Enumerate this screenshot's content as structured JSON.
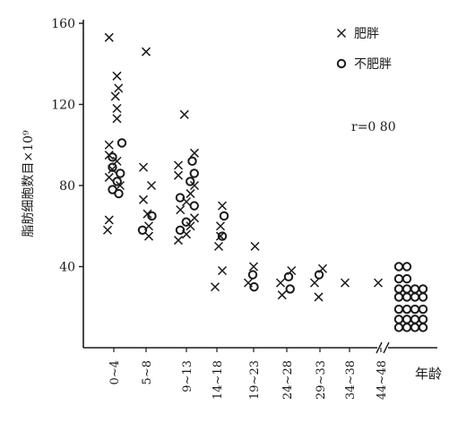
{
  "chart_data": {
    "type": "scatter",
    "title": "",
    "xlabel": "年龄",
    "ylabel": "脂肪细胞数目×10⁹",
    "categories": [
      "0~4",
      "5~8",
      "9~13",
      "14~18",
      "19~23",
      "24~28",
      "29~33",
      "34~38",
      "44~48"
    ],
    "yticks": [
      "40",
      "80",
      "120",
      "160"
    ],
    "ylim": [
      0,
      165
    ],
    "grid": false,
    "legend_position": "top-right",
    "axis_break": true,
    "annotation": "r=0 80",
    "series": [
      {
        "name": "肥胖",
        "marker": "x",
        "points": [
          {
            "cat": "0~4",
            "y": 153
          },
          {
            "cat": "0~4",
            "y": 134
          },
          {
            "cat": "0~4",
            "y": 128
          },
          {
            "cat": "0~4",
            "y": 124
          },
          {
            "cat": "0~4",
            "y": 118
          },
          {
            "cat": "0~4",
            "y": 113
          },
          {
            "cat": "0~4",
            "y": 100
          },
          {
            "cat": "0~4",
            "y": 95
          },
          {
            "cat": "0~4",
            "y": 92
          },
          {
            "cat": "0~4",
            "y": 88
          },
          {
            "cat": "0~4",
            "y": 84
          },
          {
            "cat": "0~4",
            "y": 80
          },
          {
            "cat": "0~4",
            "y": 63
          },
          {
            "cat": "0~4",
            "y": 58
          },
          {
            "cat": "5~8",
            "y": 146
          },
          {
            "cat": "5~8",
            "y": 89
          },
          {
            "cat": "5~8",
            "y": 80
          },
          {
            "cat": "5~8",
            "y": 73
          },
          {
            "cat": "5~8",
            "y": 66
          },
          {
            "cat": "5~8",
            "y": 60
          },
          {
            "cat": "5~8",
            "y": 55
          },
          {
            "cat": "9~13",
            "y": 115
          },
          {
            "cat": "9~13",
            "y": 96
          },
          {
            "cat": "9~13",
            "y": 90
          },
          {
            "cat": "9~13",
            "y": 85
          },
          {
            "cat": "9~13",
            "y": 80
          },
          {
            "cat": "9~13",
            "y": 76
          },
          {
            "cat": "9~13",
            "y": 72
          },
          {
            "cat": "9~13",
            "y": 68
          },
          {
            "cat": "9~13",
            "y": 64
          },
          {
            "cat": "9~13",
            "y": 60
          },
          {
            "cat": "9~13",
            "y": 56
          },
          {
            "cat": "9~13",
            "y": 53
          },
          {
            "cat": "14~18",
            "y": 70
          },
          {
            "cat": "14~18",
            "y": 60
          },
          {
            "cat": "14~18",
            "y": 55
          },
          {
            "cat": "14~18",
            "y": 50
          },
          {
            "cat": "14~18",
            "y": 38
          },
          {
            "cat": "14~18",
            "y": 30
          },
          {
            "cat": "19~23",
            "y": 50
          },
          {
            "cat": "19~23",
            "y": 40
          },
          {
            "cat": "19~23",
            "y": 32
          },
          {
            "cat": "24~28",
            "y": 38
          },
          {
            "cat": "24~28",
            "y": 32
          },
          {
            "cat": "24~28",
            "y": 26
          },
          {
            "cat": "29~33",
            "y": 39
          },
          {
            "cat": "29~33",
            "y": 32
          },
          {
            "cat": "29~33",
            "y": 25
          },
          {
            "cat": "34~38",
            "y": 32
          },
          {
            "cat": "44~48",
            "y": 32
          }
        ]
      },
      {
        "name": "不肥胖",
        "marker": "o",
        "points": [
          {
            "cat": "0~4",
            "y": 101
          },
          {
            "cat": "0~4",
            "y": 94
          },
          {
            "cat": "0~4",
            "y": 89
          },
          {
            "cat": "0~4",
            "y": 86
          },
          {
            "cat": "0~4",
            "y": 82
          },
          {
            "cat": "0~4",
            "y": 78
          },
          {
            "cat": "0~4",
            "y": 76
          },
          {
            "cat": "5~8",
            "y": 65
          },
          {
            "cat": "5~8",
            "y": 58
          },
          {
            "cat": "9~13",
            "y": 92
          },
          {
            "cat": "9~13",
            "y": 86
          },
          {
            "cat": "9~13",
            "y": 82
          },
          {
            "cat": "9~13",
            "y": 74
          },
          {
            "cat": "9~13",
            "y": 70
          },
          {
            "cat": "9~13",
            "y": 62
          },
          {
            "cat": "9~13",
            "y": 58
          },
          {
            "cat": "14~18",
            "y": 65
          },
          {
            "cat": "14~18",
            "y": 55
          },
          {
            "cat": "19~23",
            "y": 36
          },
          {
            "cat": "19~23",
            "y": 30
          },
          {
            "cat": "24~28",
            "y": 35
          },
          {
            "cat": "24~28",
            "y": 29
          },
          {
            "cat": "29~33",
            "y": 36
          },
          {
            "cat": "不肥胖",
            "y": 40
          },
          {
            "cat": "不肥胖",
            "y": 40
          },
          {
            "cat": "不肥胖",
            "y": 34
          },
          {
            "cat": "不肥胖",
            "y": 34
          },
          {
            "cat": "不肥胖",
            "y": 29
          },
          {
            "cat": "不肥胖",
            "y": 29
          },
          {
            "cat": "不肥胖",
            "y": 29
          },
          {
            "cat": "不肥胖",
            "y": 29
          },
          {
            "cat": "不肥胖",
            "y": 25
          },
          {
            "cat": "不肥胖",
            "y": 25
          },
          {
            "cat": "不肥胖",
            "y": 25
          },
          {
            "cat": "不肥胖",
            "y": 25
          },
          {
            "cat": "不肥胖",
            "y": 19
          },
          {
            "cat": "不肥胖",
            "y": 19
          },
          {
            "cat": "不肥胖",
            "y": 19
          },
          {
            "cat": "不肥胖",
            "y": 19
          },
          {
            "cat": "不肥胖",
            "y": 14
          },
          {
            "cat": "不肥胖",
            "y": 14
          },
          {
            "cat": "不肥胖",
            "y": 14
          },
          {
            "cat": "不肥胖",
            "y": 14
          },
          {
            "cat": "不肥胖",
            "y": 10
          },
          {
            "cat": "不肥胖",
            "y": 10
          },
          {
            "cat": "不肥胖",
            "y": 10
          },
          {
            "cat": "不肥胖",
            "y": 10
          }
        ]
      }
    ]
  }
}
